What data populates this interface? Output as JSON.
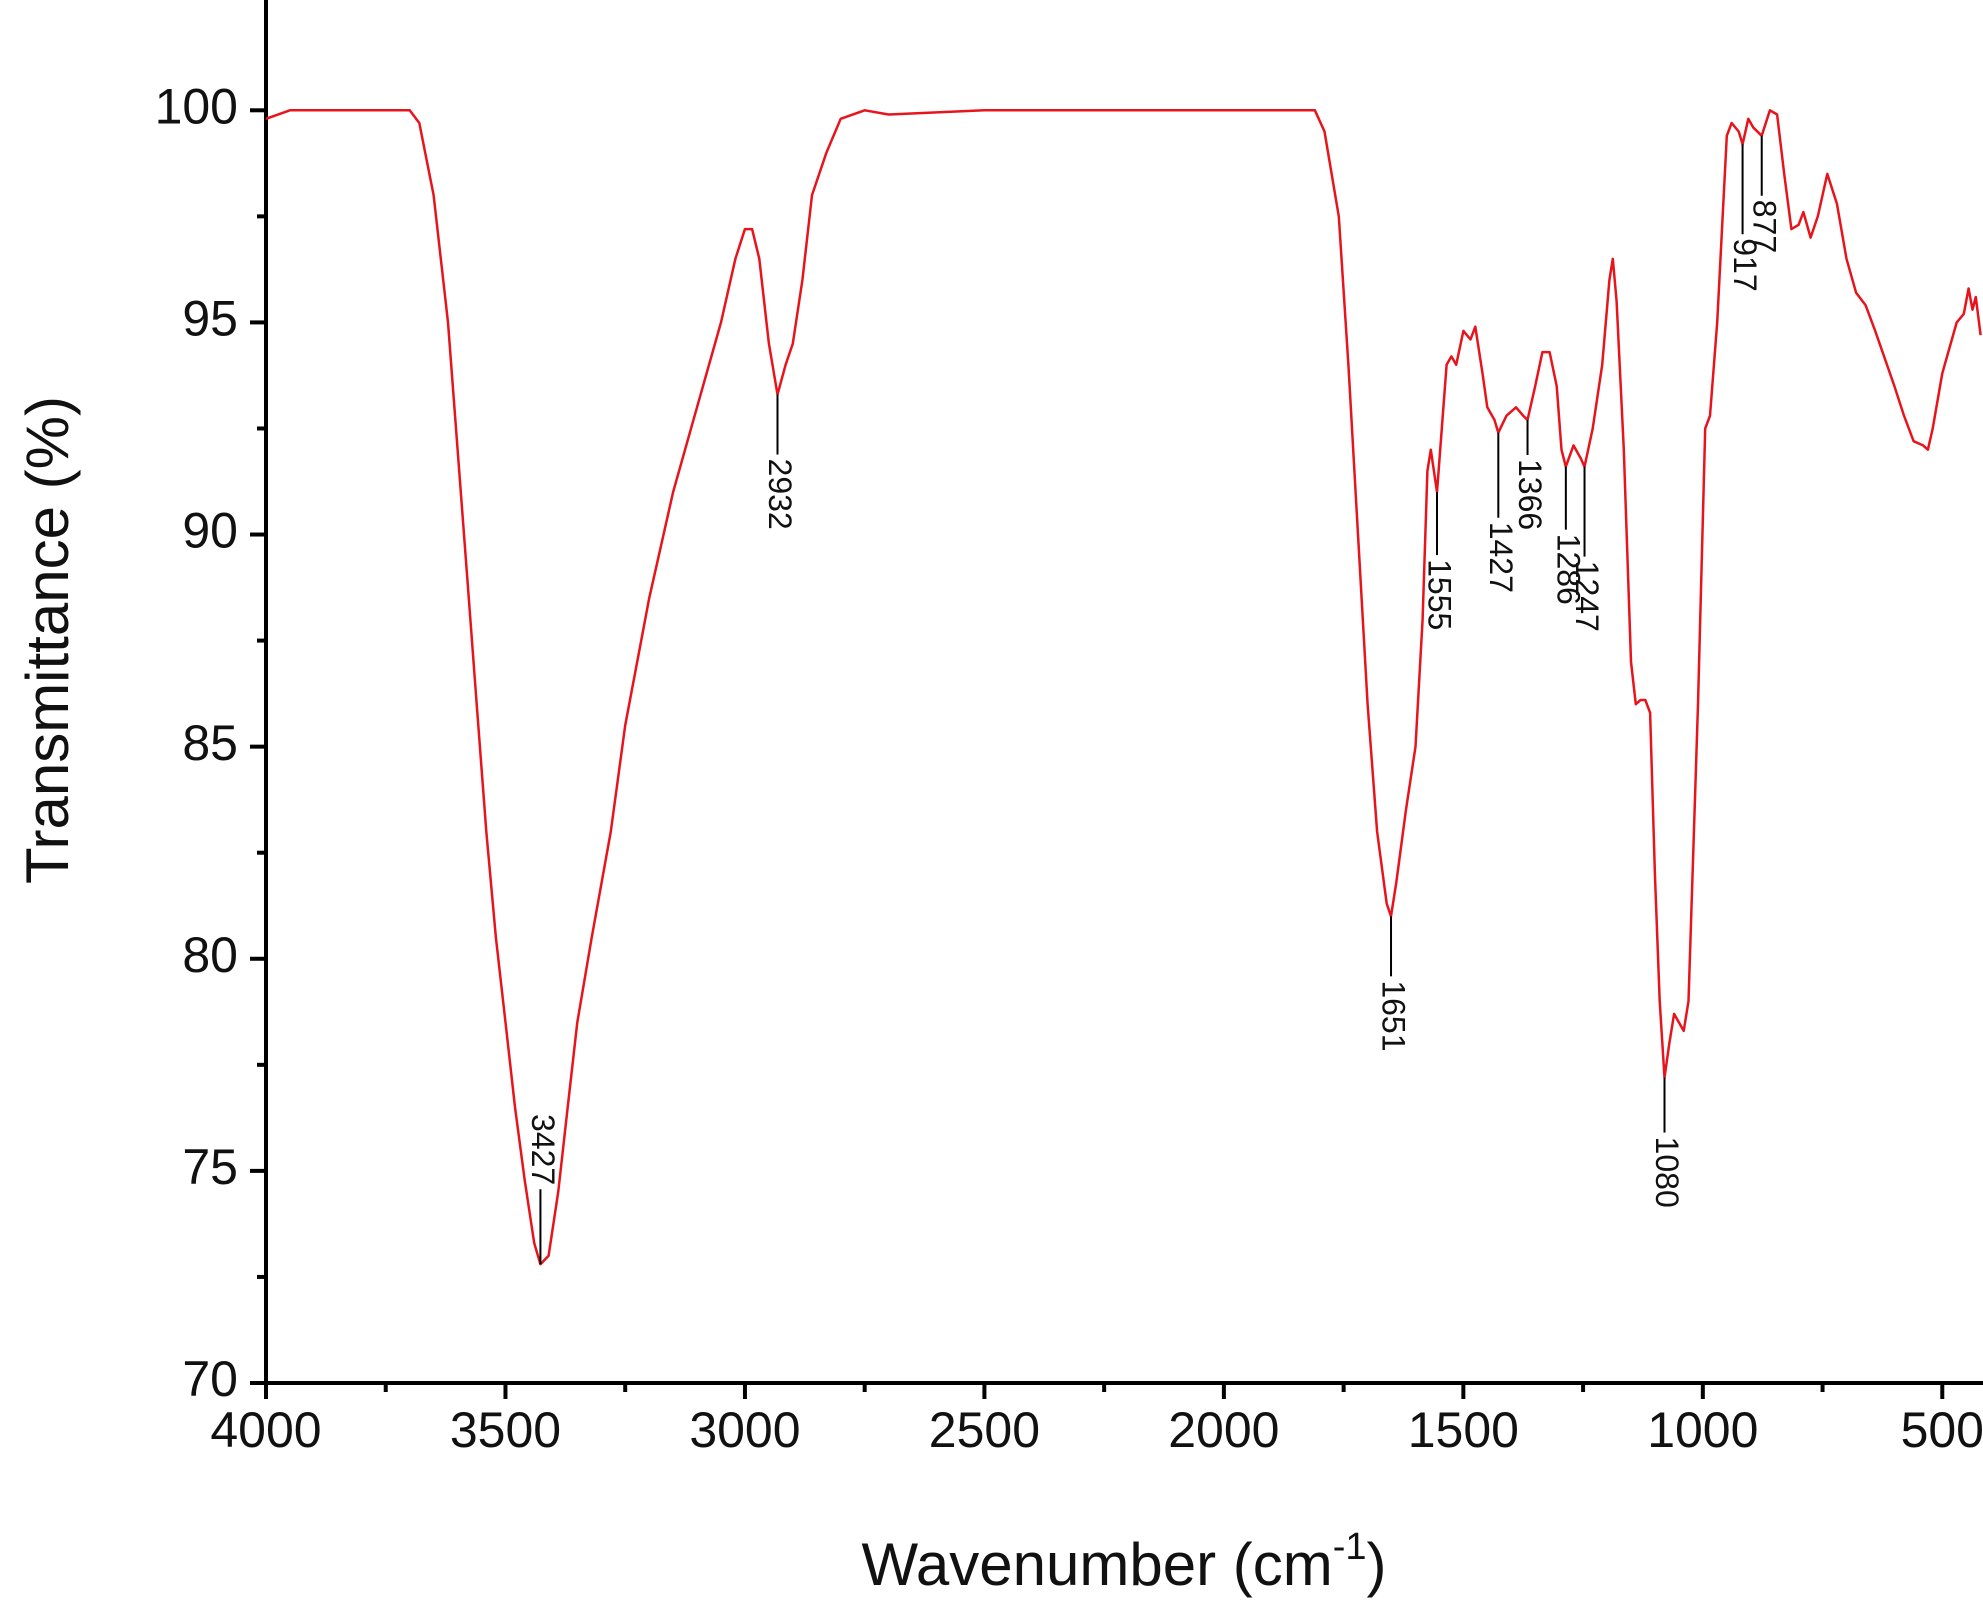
{
  "chart_data": {
    "type": "line",
    "xlabel": {
      "text": "Wavenumber (cm",
      "sup": "-1",
      "tail": ")"
    },
    "ylabel": "Transmittance (%)",
    "xlim": [
      4000,
      415
    ],
    "ylim": [
      70,
      102.6
    ],
    "xticks": [
      4000,
      3500,
      3000,
      2500,
      2000,
      1500,
      1000,
      500
    ],
    "xminor": [
      3750,
      3250,
      2750,
      2250,
      1750,
      1250,
      750
    ],
    "yticks": [
      70,
      75,
      80,
      85,
      90,
      95,
      100
    ],
    "yminor": [
      72.5,
      77.5,
      82.5,
      87.5,
      92.5,
      97.5
    ],
    "series": [
      {
        "color": "#e8141c",
        "x": [
          4000,
          3950,
          3900,
          3800,
          3700,
          3680,
          3650,
          3620,
          3600,
          3580,
          3560,
          3540,
          3520,
          3500,
          3480,
          3460,
          3440,
          3427,
          3410,
          3390,
          3370,
          3350,
          3320,
          3280,
          3250,
          3200,
          3150,
          3100,
          3050,
          3020,
          3000,
          2985,
          2970,
          2950,
          2932,
          2915,
          2900,
          2880,
          2860,
          2830,
          2800,
          2750,
          2700,
          2500,
          2000,
          1850,
          1810,
          1790,
          1760,
          1740,
          1720,
          1700,
          1680,
          1660,
          1651,
          1640,
          1620,
          1600,
          1585,
          1575,
          1568,
          1555,
          1545,
          1535,
          1525,
          1515,
          1500,
          1485,
          1475,
          1460,
          1450,
          1435,
          1427,
          1410,
          1390,
          1375,
          1366,
          1350,
          1335,
          1320,
          1305,
          1295,
          1286,
          1270,
          1255,
          1247,
          1230,
          1210,
          1195,
          1188,
          1180,
          1165,
          1150,
          1140,
          1130,
          1120,
          1110,
          1100,
          1090,
          1080,
          1070,
          1060,
          1050,
          1040,
          1030,
          1010,
          995,
          985,
          970,
          950,
          940,
          925,
          917,
          905,
          895,
          877,
          860,
          845,
          830,
          815,
          800,
          790,
          775,
          760,
          740,
          720,
          700,
          680,
          660,
          640,
          600,
          580,
          560,
          540,
          530,
          520,
          500,
          480,
          470,
          455,
          445,
          437,
          430,
          420
        ],
        "values": [
          99.8,
          100,
          100,
          100,
          100,
          99.7,
          98,
          95,
          92,
          89,
          86,
          83,
          80.5,
          78.5,
          76.5,
          74.8,
          73.3,
          72.8,
          73,
          74.5,
          76.5,
          78.5,
          80.5,
          83,
          85.5,
          88.5,
          91,
          93,
          95,
          96.5,
          97.2,
          97.2,
          96.5,
          94.5,
          93.3,
          94,
          94.5,
          96,
          98,
          99,
          99.8,
          100,
          99.9,
          100,
          100,
          100,
          100,
          99.5,
          97.5,
          94,
          90,
          86,
          83,
          81.3,
          81,
          81.8,
          83.5,
          85,
          88,
          91.5,
          92,
          91,
          92.5,
          94,
          94.2,
          94,
          94.8,
          94.6,
          94.9,
          93.8,
          93,
          92.7,
          92.4,
          92.8,
          93,
          92.8,
          92.7,
          93.5,
          94.3,
          94.3,
          93.5,
          92,
          91.6,
          92.1,
          91.8,
          91.6,
          92.5,
          94,
          96,
          96.5,
          95.5,
          92,
          87,
          86,
          86.1,
          86.1,
          85.8,
          82,
          79,
          77.2,
          78,
          78.7,
          78.5,
          78.3,
          79,
          86,
          92.5,
          92.8,
          95,
          99.4,
          99.7,
          99.5,
          99.2,
          99.8,
          99.6,
          99.4,
          100,
          99.9,
          98.5,
          97.2,
          97.3,
          97.6,
          97,
          97.5,
          98.5,
          97.8,
          96.5,
          95.7,
          95.4,
          94.8,
          93.5,
          92.8,
          92.2,
          92.1,
          92,
          92.5,
          93.8,
          94.6,
          95,
          95.2,
          95.8,
          95.3,
          95.6,
          94.7
        ]
      }
    ],
    "annotations": [
      {
        "x": 3427,
        "y": 72.8,
        "label": "3427"
      },
      {
        "x": 2932,
        "y": 93.3,
        "label": "2932"
      },
      {
        "x": 1651,
        "y": 81,
        "label": "1651"
      },
      {
        "x": 1555,
        "y": 91,
        "label": "1555"
      },
      {
        "x": 1427,
        "y": 92.4,
        "label": "1427"
      },
      {
        "x": 1366,
        "y": 92.7,
        "label": "1366"
      },
      {
        "x": 1286,
        "y": 91.6,
        "label": "1286"
      },
      {
        "x": 1247,
        "y": 91.6,
        "label": "1247"
      },
      {
        "x": 1080,
        "y": 77.2,
        "label": "1080"
      },
      {
        "x": 917,
        "y": 99.2,
        "label": "917"
      },
      {
        "x": 877,
        "y": 99.4,
        "label": "877"
      }
    ]
  }
}
